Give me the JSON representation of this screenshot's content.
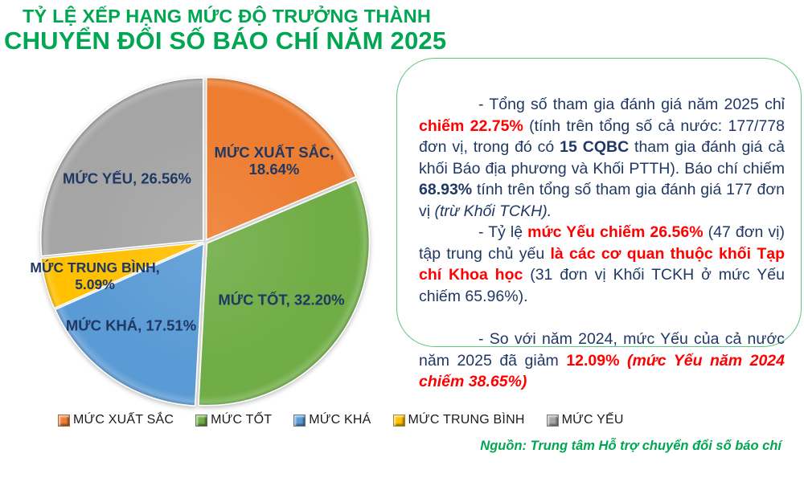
{
  "header": {
    "title_line1": "TỶ LỆ XẾP HẠNG MỨC ĐỘ TRƯỞNG THÀNH",
    "title_line2": "CHUYỂN ĐỔI SỐ BÁO CHÍ NĂM 2025",
    "title_color": "#00A651"
  },
  "chart_data": {
    "type": "pie",
    "title": "TỶ LỆ XẾP HẠNG MỨC ĐỘ TRƯỞNG THÀNH CHUYỂN ĐỔI SỐ BÁO CHÍ NĂM 2025",
    "start_angle_deg": 0,
    "direction": "clockwise",
    "legend_position": "bottom",
    "label_color": "#1F3864",
    "slices": [
      {
        "name": "MỨC XUẤT SẮC",
        "value": 18.64,
        "color": "#ED7D31",
        "label_lines": [
          "MỨC XUẤT SẮC,",
          "18.64%"
        ]
      },
      {
        "name": "MỨC TỐT",
        "value": 32.2,
        "color": "#70AD47",
        "label_lines": [
          "MỨC TỐT, 32.20%"
        ]
      },
      {
        "name": "MỨC KHÁ",
        "value": 17.51,
        "color": "#5B9BD5",
        "label_lines": [
          "MỨC KHÁ, 17.51%"
        ]
      },
      {
        "name": "MỨC TRUNG BÌNH",
        "value": 5.09,
        "color": "#FFC000",
        "label_lines": [
          "MỨC TRUNG BÌNH,",
          "5.09%"
        ]
      },
      {
        "name": "MỨC YẾU",
        "value": 26.56,
        "color": "#A5A5A5",
        "label_lines": [
          "MỨC YẾU, 26.56%"
        ]
      }
    ]
  },
  "info_box": {
    "border_color": "#5FC383",
    "text_color": "#1F3864",
    "highlight_color": "#FF0000",
    "paragraphs": [
      {
        "space_before": false,
        "segments": [
          {
            "t": "- Tổng số tham gia đánh giá năm 2025 chỉ ",
            "s": "navy"
          },
          {
            "t": "chiếm 22.75%",
            "s": "red-bold"
          },
          {
            "t": " (tính trên tổng số cả nước: 177/778 đơn vị, trong đó có ",
            "s": "navy"
          },
          {
            "t": "15 CQBC",
            "s": "navy-bold"
          },
          {
            "t": " tham gia đánh giá cả khối Báo địa phương và Khối PTTH). Báo chí chiếm ",
            "s": "navy"
          },
          {
            "t": "68.93%",
            "s": "navy-bold"
          },
          {
            "t": " tính trên tổng số tham gia đánh giá 177 đơn vị ",
            "s": "navy"
          },
          {
            "t": "(trừ Khối TCKH).",
            "s": "navy-italic"
          }
        ]
      },
      {
        "space_before": false,
        "segments": [
          {
            "t": "- Tỷ lệ ",
            "s": "navy"
          },
          {
            "t": "mức Yếu chiếm 26.56%",
            "s": "red-bold"
          },
          {
            "t": " (47 đơn vị) tập trung chủ yếu ",
            "s": "navy"
          },
          {
            "t": "là các cơ quan thuộc khối Tạp chí Khoa học",
            "s": "red-bold"
          },
          {
            "t": " (31 đơn vị Khối TCKH ở mức Yếu chiếm 65.96%).",
            "s": "navy"
          }
        ]
      },
      {
        "space_before": true,
        "segments": [
          {
            "t": "- So với năm 2024, mức Yếu của cả nước năm 2025 đã giảm ",
            "s": "navy"
          },
          {
            "t": "12.09%",
            "s": "red-bold"
          },
          {
            "t": " ",
            "s": "navy"
          },
          {
            "t": "(mức Yếu năm 2024 chiếm 38.65%)",
            "s": "red-bold-italic"
          }
        ]
      }
    ]
  },
  "source": {
    "text": "Nguồn: Trung tâm Hỗ trợ chuyển đổi số báo chí"
  }
}
